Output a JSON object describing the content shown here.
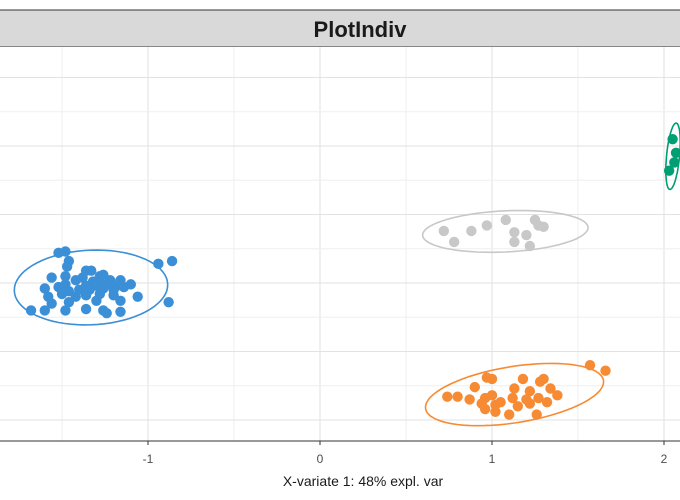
{
  "chart_data": {
    "type": "scatter",
    "title": "PlotIndiv",
    "xlabel": "X-variate 1: 48% expl. var",
    "ylabel": "",
    "xlim": [
      -1.85,
      2.08
    ],
    "ylim": [
      -1.18,
      1.2
    ],
    "x_ticks": [
      -1,
      0,
      1,
      2
    ],
    "x_tick_labels": [
      "-1",
      "0",
      "1",
      "2"
    ],
    "grid": true,
    "series": [
      {
        "color": "#3a8fd6",
        "points": [
          [
            -1.46,
            0.16
          ],
          [
            -1.47,
            0.12
          ],
          [
            -1.36,
            0.09
          ],
          [
            -1.33,
            0.09
          ],
          [
            -1.56,
            0.04
          ],
          [
            -1.48,
            0.05
          ],
          [
            -1.38,
            0.04
          ],
          [
            -1.28,
            0.05
          ],
          [
            -1.26,
            0.06
          ],
          [
            -1.42,
            0.02
          ],
          [
            -1.32,
            0.01
          ],
          [
            -1.28,
            0.0
          ],
          [
            -1.22,
            0.02
          ],
          [
            -1.16,
            0.02
          ],
          [
            -1.48,
            -0.01
          ],
          [
            -1.36,
            -0.02
          ],
          [
            -1.3,
            -0.02
          ],
          [
            -1.24,
            -0.01
          ],
          [
            -1.18,
            -0.02
          ],
          [
            -1.1,
            -0.01
          ],
          [
            -1.6,
            -0.04
          ],
          [
            -1.52,
            -0.03
          ],
          [
            -1.46,
            -0.06
          ],
          [
            -1.4,
            -0.05
          ],
          [
            -1.34,
            -0.05
          ],
          [
            -1.26,
            -0.04
          ],
          [
            -1.2,
            -0.05
          ],
          [
            -1.14,
            -0.03
          ],
          [
            -1.58,
            -0.1
          ],
          [
            -1.5,
            -0.08
          ],
          [
            -1.42,
            -0.1
          ],
          [
            -1.36,
            -0.09
          ],
          [
            -1.28,
            -0.08
          ],
          [
            -1.2,
            -0.09
          ],
          [
            -1.3,
            -0.13
          ],
          [
            -1.56,
            -0.15
          ],
          [
            -1.46,
            -0.14
          ],
          [
            -1.16,
            -0.13
          ],
          [
            -1.06,
            -0.1
          ],
          [
            -1.68,
            -0.2
          ],
          [
            -1.6,
            -0.2
          ],
          [
            -1.48,
            -0.2
          ],
          [
            -1.36,
            -0.19
          ],
          [
            -1.26,
            -0.2
          ],
          [
            -1.16,
            -0.21
          ],
          [
            -1.24,
            -0.22
          ],
          [
            -0.86,
            0.16
          ],
          [
            -0.94,
            0.14
          ],
          [
            -0.88,
            -0.14
          ],
          [
            -1.52,
            0.22
          ],
          [
            -1.48,
            0.23
          ]
        ]
      },
      {
        "color": "#c8c8c8",
        "points": [
          [
            0.72,
            0.38
          ],
          [
            0.88,
            0.38
          ],
          [
            0.97,
            0.42
          ],
          [
            1.08,
            0.46
          ],
          [
            1.25,
            0.46
          ],
          [
            1.27,
            0.42
          ],
          [
            1.3,
            0.41
          ],
          [
            1.13,
            0.37
          ],
          [
            1.2,
            0.35
          ],
          [
            0.78,
            0.3
          ],
          [
            1.13,
            0.3
          ],
          [
            1.22,
            0.27
          ]
        ]
      },
      {
        "color": "#f68b33",
        "points": [
          [
            0.97,
            -0.69
          ],
          [
            1.0,
            -0.7
          ],
          [
            1.18,
            -0.7
          ],
          [
            1.3,
            -0.7
          ],
          [
            1.28,
            -0.72
          ],
          [
            0.9,
            -0.76
          ],
          [
            1.13,
            -0.77
          ],
          [
            1.22,
            -0.79
          ],
          [
            1.34,
            -0.77
          ],
          [
            0.8,
            -0.83
          ],
          [
            0.87,
            -0.85
          ],
          [
            0.96,
            -0.84
          ],
          [
            1.0,
            -0.82
          ],
          [
            1.12,
            -0.84
          ],
          [
            1.2,
            -0.85
          ],
          [
            1.27,
            -0.84
          ],
          [
            1.38,
            -0.82
          ],
          [
            0.94,
            -0.88
          ],
          [
            1.02,
            -0.89
          ],
          [
            1.15,
            -0.9
          ],
          [
            1.22,
            -0.88
          ],
          [
            1.32,
            -0.87
          ],
          [
            0.96,
            -0.92
          ],
          [
            1.02,
            -0.94
          ],
          [
            1.1,
            -0.96
          ],
          [
            1.26,
            -0.96
          ],
          [
            0.74,
            -0.83
          ],
          [
            1.57,
            -0.6
          ],
          [
            1.66,
            -0.64
          ],
          [
            1.05,
            -0.87
          ]
        ]
      },
      {
        "color": "#009e73",
        "points": [
          [
            2.05,
            1.05
          ],
          [
            2.07,
            0.95
          ],
          [
            2.03,
            0.82
          ],
          [
            2.06,
            0.88
          ]
        ]
      }
    ]
  }
}
